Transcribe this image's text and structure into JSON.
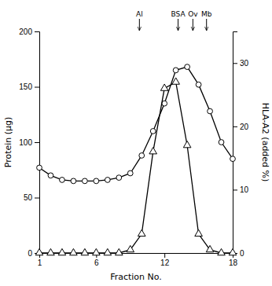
{
  "chart_data": {
    "type": "line",
    "xlabel": "Fraction No.",
    "ylabel": "Protein (μg)",
    "y2label": "HLA-A2 (added %)",
    "x": [
      1,
      2,
      3,
      4,
      5,
      6,
      7,
      8,
      9,
      10,
      11,
      12,
      13,
      14,
      15,
      16,
      17,
      18
    ],
    "series": [
      {
        "values": [
          77,
          70,
          66,
          65,
          65,
          65,
          66,
          68,
          72,
          88,
          110,
          135,
          165,
          168,
          152,
          128,
          100,
          85
        ],
        "color": "black",
        "marker": "circle"
      },
      {
        "values": [
          0,
          0,
          0,
          0,
          0,
          0,
          0,
          0,
          0.5,
          3,
          16,
          26,
          27,
          17,
          3,
          0.5,
          0,
          0
        ],
        "color": "black",
        "marker": "triangle",
        "axis": "y2"
      }
    ],
    "xlim": [
      1,
      18
    ],
    "xticks": [
      1,
      6,
      12,
      18
    ],
    "ylim": [
      0,
      200
    ],
    "yticks": [
      0,
      50,
      100,
      150,
      200
    ],
    "y2lim": [
      0,
      35
    ],
    "y2ticks": [
      0,
      10,
      20,
      30
    ],
    "grid": false,
    "annotations": [
      {
        "label": "Al",
        "x": 9.8
      },
      {
        "label": "BSA",
        "x": 13.2
      },
      {
        "label": "Ov",
        "x": 14.5
      },
      {
        "label": "Mb",
        "x": 15.7
      }
    ]
  }
}
